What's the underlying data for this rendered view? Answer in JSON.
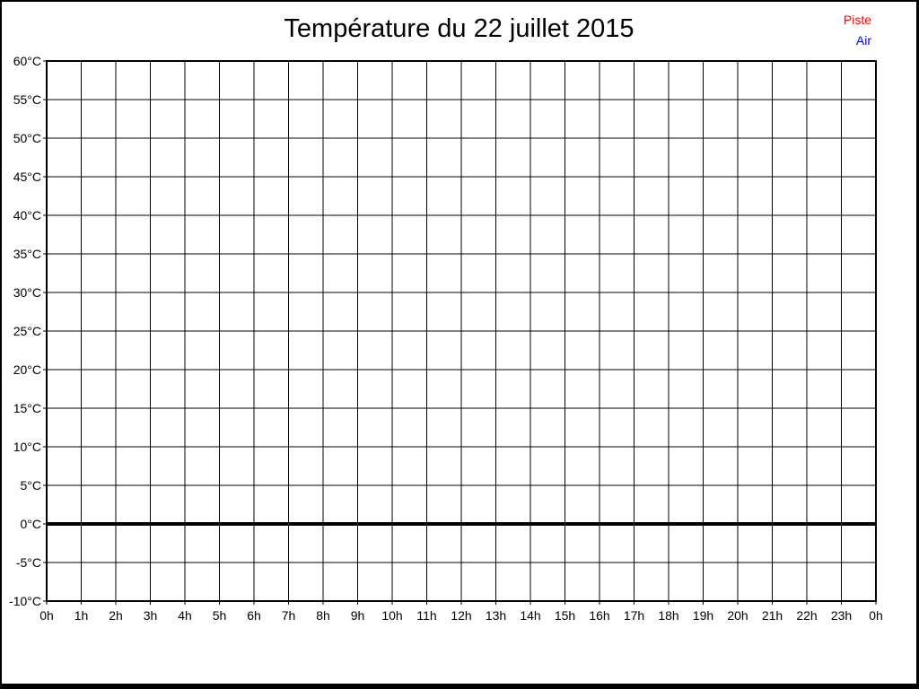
{
  "chart_data": {
    "type": "line",
    "title": "Température du 22 juillet 2015",
    "xlabel": "",
    "ylabel": "",
    "x_tick_labels": [
      "0h",
      "1h",
      "2h",
      "3h",
      "4h",
      "5h",
      "6h",
      "7h",
      "8h",
      "9h",
      "10h",
      "11h",
      "12h",
      "13h",
      "14h",
      "15h",
      "16h",
      "17h",
      "18h",
      "19h",
      "20h",
      "21h",
      "22h",
      "23h",
      "0h"
    ],
    "y_tick_labels": [
      "60°C",
      "55°C",
      "50°C",
      "45°C",
      "40°C",
      "35°C",
      "30°C",
      "25°C",
      "20°C",
      "15°C",
      "10°C",
      "5°C",
      "0°C",
      "-5°C",
      "-10°C"
    ],
    "y_ticks": [
      60,
      55,
      50,
      45,
      40,
      35,
      30,
      25,
      20,
      15,
      10,
      5,
      0,
      -5,
      -10
    ],
    "ylim": [
      -10,
      60
    ],
    "xlim_hours": [
      0,
      24
    ],
    "grid": true,
    "background_color": "#ffffff",
    "grid_color": "#000000",
    "axis_color": "#000000",
    "zero_line": {
      "value": 0,
      "color": "#000000",
      "thickness": 4
    },
    "legend": {
      "position": "top-right",
      "entries": [
        {
          "label": "Piste",
          "color": "#ff0000"
        },
        {
          "label": "Air",
          "color": "#0000ff"
        }
      ]
    },
    "series": [
      {
        "name": "Piste",
        "color": "#ff0000",
        "points": []
      },
      {
        "name": "Air",
        "color": "#0000ff",
        "points": []
      }
    ]
  }
}
